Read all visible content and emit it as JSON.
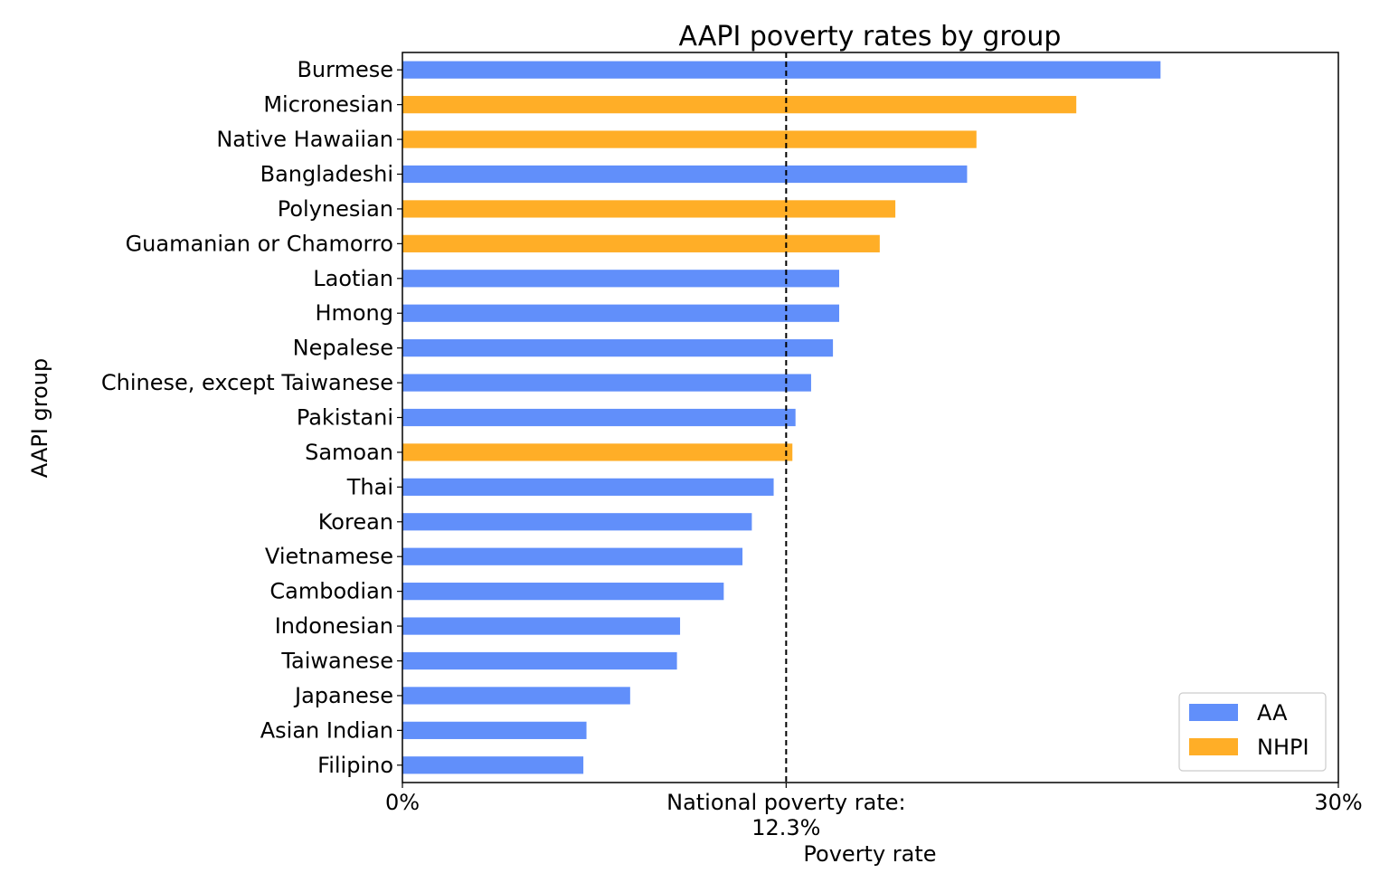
{
  "chart_data": {
    "type": "bar",
    "orientation": "horizontal",
    "title": "AAPI poverty rates by group",
    "xlabel": "Poverty rate",
    "ylabel": "AAPI group",
    "xlim": [
      0,
      30
    ],
    "xticks": [
      {
        "value": 0,
        "label": "0%"
      },
      {
        "value": 12.3,
        "label": "National poverty rate:\n12.3%"
      },
      {
        "value": 30,
        "label": "30%"
      }
    ],
    "reference_line": {
      "value": 12.3,
      "style": "dashed",
      "label": "National poverty rate: 12.3%"
    },
    "grid": false,
    "legend": {
      "placement": "bottom-right",
      "entries": [
        {
          "name": "AA",
          "color": "#618ffa"
        },
        {
          "name": "NHPI",
          "color": "#ffae27"
        }
      ]
    },
    "categories": [
      "Burmese",
      "Micronesian",
      "Native Hawaiian",
      "Bangladeshi",
      "Polynesian",
      "Guamanian or Chamorro",
      "Laotian",
      "Hmong",
      "Nepalese",
      "Chinese, except Taiwanese",
      "Pakistani",
      "Samoan",
      "Thai",
      "Korean",
      "Vietnamese",
      "Cambodian",
      "Indonesian",
      "Taiwanese",
      "Japanese",
      "Asian Indian",
      "Filipino"
    ],
    "values": [
      24.3,
      21.6,
      18.4,
      18.1,
      15.8,
      15.3,
      14.0,
      14.0,
      13.8,
      13.1,
      12.6,
      12.5,
      11.9,
      11.2,
      10.9,
      10.3,
      8.9,
      8.8,
      7.3,
      5.9,
      5.8
    ],
    "groups": [
      "AA",
      "NHPI",
      "NHPI",
      "AA",
      "NHPI",
      "NHPI",
      "AA",
      "AA",
      "AA",
      "AA",
      "AA",
      "NHPI",
      "AA",
      "AA",
      "AA",
      "AA",
      "AA",
      "AA",
      "AA",
      "AA",
      "AA"
    ]
  }
}
